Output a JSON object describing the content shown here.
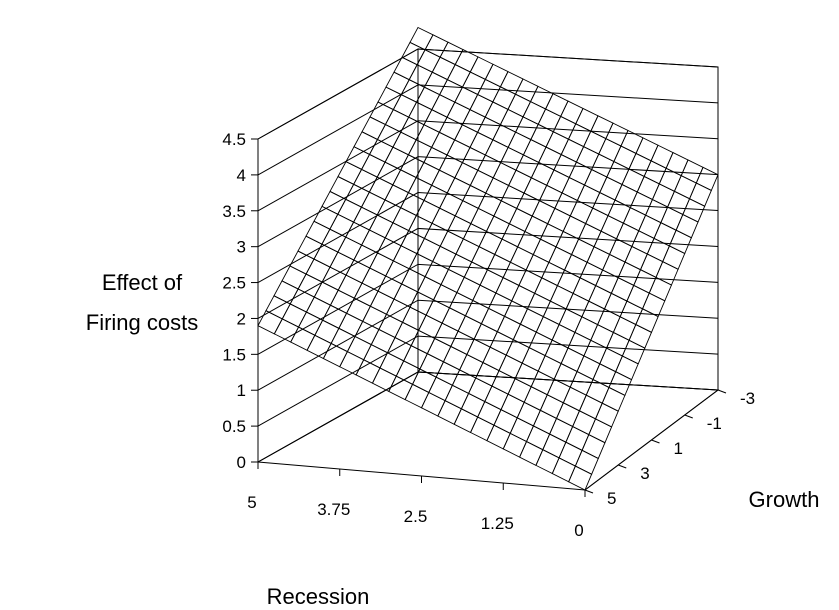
{
  "chart_data": {
    "type": "surface",
    "zlabel_lines": [
      "Effect of",
      "Firing costs"
    ],
    "xlabel": "Recession",
    "ylabel": "Growth",
    "x_ticks": [
      "5",
      "3.75",
      "2.5",
      "1.25",
      "0"
    ],
    "y_ticks": [
      "-3",
      "-1",
      "1",
      "3",
      "5"
    ],
    "z_ticks": [
      "0",
      "0.5",
      "1",
      "1.5",
      "2",
      "2.5",
      "3",
      "3.5",
      "4",
      "4.5"
    ],
    "zlim": [
      0,
      4.5
    ],
    "x_range": [
      0,
      5
    ],
    "y_range": [
      -3,
      5
    ],
    "grid": true,
    "bands": [
      {
        "range": [
          0,
          0.5
        ],
        "color": "#993366"
      },
      {
        "range": [
          0.5,
          1
        ],
        "color": "#ffffcc"
      },
      {
        "range": [
          1,
          1.5
        ],
        "color": "#ccffff"
      },
      {
        "range": [
          1.5,
          2
        ],
        "color": "#ccffff"
      },
      {
        "range": [
          2,
          2.5
        ],
        "color": "#660066"
      },
      {
        "range": [
          2.5,
          3
        ],
        "color": "#660066"
      },
      {
        "range": [
          3,
          3.5
        ],
        "color": "#ff8080"
      },
      {
        "range": [
          3.5,
          4
        ],
        "color": "#0066cc"
      },
      {
        "range": [
          4,
          4.5
        ],
        "color": "#ccccff"
      },
      {
        "range": [
          4.5,
          5
        ],
        "color": "#000080"
      }
    ],
    "surface_corners": [
      {
        "recession": 5,
        "growth": -3,
        "value": 4.8
      },
      {
        "recession": 0,
        "growth": -3,
        "value": 3.0
      },
      {
        "recession": 0,
        "growth": 5,
        "value": 0.0
      },
      {
        "recession": 5,
        "growth": 5,
        "value": 1.9
      }
    ]
  }
}
